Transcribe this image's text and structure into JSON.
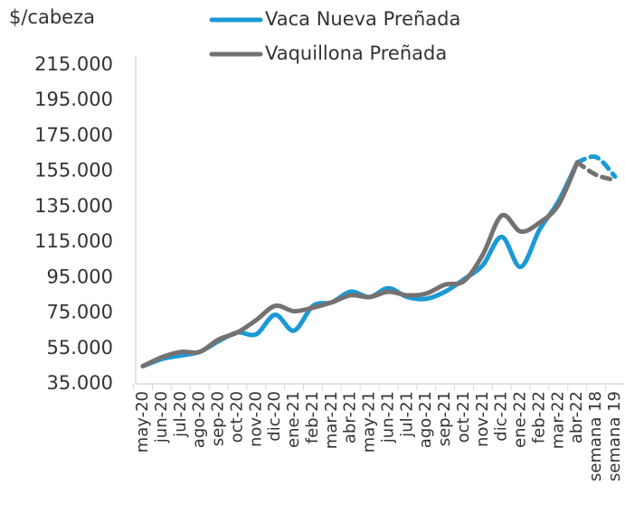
{
  "chart_data": {
    "type": "line",
    "ylabel": "$/cabeza",
    "categories": [
      "may-20",
      "jun-20",
      "jul-20",
      "ago-20",
      "sep-20",
      "oct-20",
      "nov-20",
      "dic-20",
      "ene-21",
      "feb-21",
      "mar-21",
      "abr-21",
      "may-21",
      "jun-21",
      "jul-21",
      "ago-21",
      "sep-21",
      "oct-21",
      "nov-21",
      "dic-21",
      "ene-22",
      "feb-22",
      "mar-22",
      "abr-22",
      "semana 18",
      "semana 19"
    ],
    "series": [
      {
        "name": "Vaca Nueva Preñada",
        "color": "#1a9ad6",
        "values": [
          45000,
          49000,
          51000,
          53000,
          59000,
          64000,
          63000,
          74000,
          65000,
          79000,
          81000,
          87000,
          84000,
          89000,
          84000,
          83000,
          87000,
          94000,
          102000,
          118000,
          101000,
          122000,
          138000,
          160000,
          163000,
          152000
        ]
      },
      {
        "name": "Vaquillona Preñada",
        "color": "#767171",
        "values": [
          45000,
          50000,
          53000,
          53000,
          60000,
          64000,
          71000,
          79000,
          76000,
          78000,
          81000,
          85000,
          84000,
          87000,
          85000,
          86000,
          91000,
          93000,
          108000,
          130000,
          121000,
          126000,
          136000,
          160000,
          153000,
          150000
        ]
      }
    ],
    "dashed_from": 23,
    "ylim": [
      35000,
      215000
    ],
    "yticks": [
      {
        "value": 35000,
        "label": "35.000"
      },
      {
        "value": 55000,
        "label": "55.000"
      },
      {
        "value": 75000,
        "label": "75.000"
      },
      {
        "value": 95000,
        "label": "95.000"
      },
      {
        "value": 115000,
        "label": "115.000"
      },
      {
        "value": 135000,
        "label": "135.000"
      },
      {
        "value": 155000,
        "label": "155.000"
      },
      {
        "value": 175000,
        "label": "175.000"
      },
      {
        "value": 195000,
        "label": "195.000"
      },
      {
        "value": 215000,
        "label": "215.000"
      }
    ]
  }
}
